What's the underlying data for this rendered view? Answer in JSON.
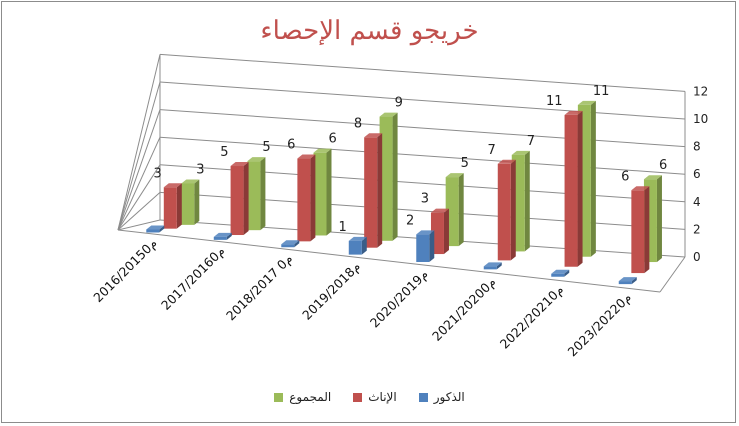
{
  "chart_data": {
    "type": "bar",
    "title": "خريجو قسم الإحصاء",
    "categories": [
      "2016/20150م",
      "2017/20160م",
      "2018/2017 0م",
      "2019/2018م",
      "2020/2019م",
      "2021/20200م",
      "2022/20210م",
      "2023/20220م"
    ],
    "series": [
      {
        "name": "الذكور",
        "color": "#4f81bd",
        "values": [
          0,
          0,
          0,
          1,
          2,
          0,
          0,
          0
        ],
        "labels": [
          "",
          "",
          "",
          "1",
          "2",
          "",
          "",
          ""
        ]
      },
      {
        "name": "الإناث",
        "color": "#c0504d",
        "values": [
          3,
          5,
          6,
          8,
          3,
          7,
          11,
          6
        ],
        "labels": [
          "3",
          "5",
          "6",
          "8",
          "3",
          "7",
          "11",
          "6"
        ]
      },
      {
        "name": "المجموع",
        "color": "#9bbb59",
        "values": [
          3,
          5,
          6,
          9,
          5,
          7,
          11,
          6
        ],
        "labels": [
          "3",
          "5",
          "6",
          "9",
          "5",
          "7",
          "11",
          "6"
        ]
      }
    ],
    "ylim": [
      0,
      12
    ],
    "yticks": [
      "0",
      "2",
      "4",
      "6",
      "8",
      "10",
      "12"
    ],
    "grid": true,
    "legend_position": "bottom",
    "projection": "3d"
  }
}
